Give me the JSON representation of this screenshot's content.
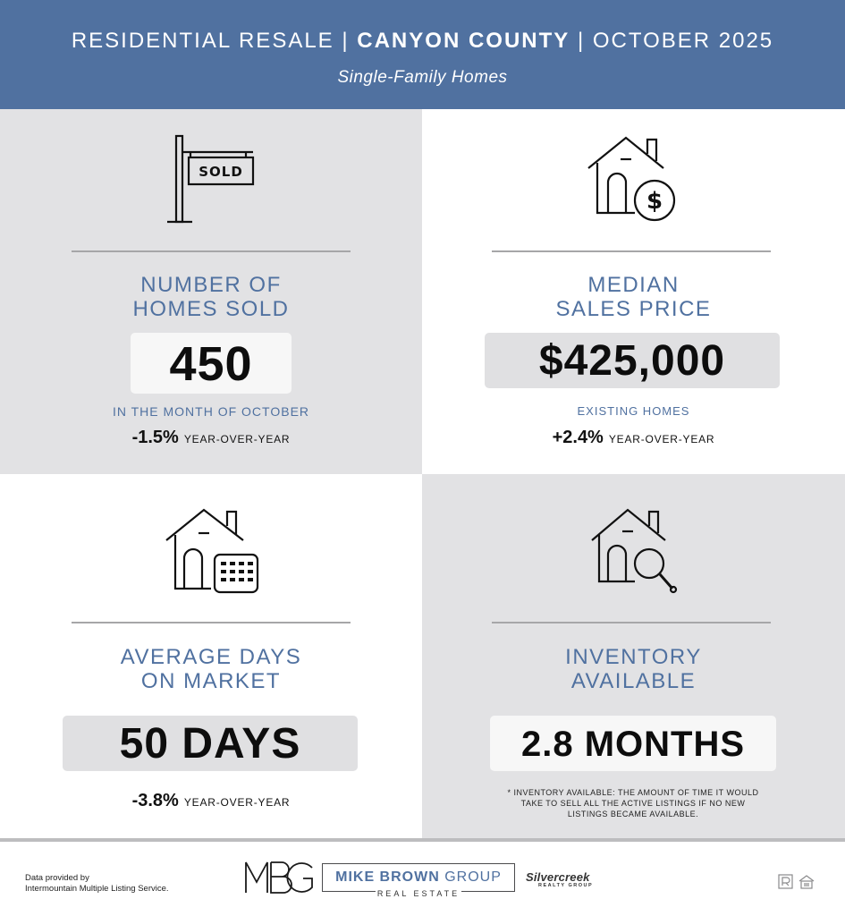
{
  "header": {
    "title_part1": "RESIDENTIAL RESALE | ",
    "title_bold": "CANYON COUNTY",
    "title_part2": " | OCTOBER 2025",
    "subtitle": "Single-Family Homes"
  },
  "homes_sold": {
    "icon": "sold-sign-icon",
    "label_line1": "NUMBER OF",
    "label_line2": "HOMES SOLD",
    "value": "450",
    "caption": "IN THE MONTH OF OCTOBER",
    "yoy_pct": "-1.5%",
    "yoy_text": "YEAR-OVER-YEAR"
  },
  "median_price": {
    "icon": "house-dollar-icon",
    "label_line1": "MEDIAN",
    "label_line2": "SALES PRICE",
    "value": "$425,000",
    "caption": "EXISTING HOMES",
    "yoy_pct": "+2.4%",
    "yoy_text": "YEAR-OVER-YEAR"
  },
  "days_on_market": {
    "icon": "house-calendar-icon",
    "label_line1": "AVERAGE DAYS",
    "label_line2": "ON MARKET",
    "value": "50 DAYS",
    "yoy_pct": "-3.8%",
    "yoy_text": "YEAR-OVER-YEAR"
  },
  "inventory": {
    "icon": "house-search-icon",
    "label_line1": "INVENTORY",
    "label_line2": "AVAILABLE",
    "value": "2.8 MONTHS",
    "note_line1": "* INVENTORY AVAILABLE: THE AMOUNT OF TIME IT WOULD",
    "note_line2": "TAKE TO SELL ALL THE ACTIVE LISTINGS IF NO NEW",
    "note_line3": "LISTINGS BECAME AVAILABLE."
  },
  "footer": {
    "provided_line1": "Data provided by",
    "provided_line2": "Intermountain Multiple Listing Service.",
    "mbg_name_bold": "MIKE BROWN",
    "mbg_name_rest": " GROUP",
    "mbg_sub": "REAL ESTATE",
    "silvercreek_name": "Silvercreek",
    "silvercreek_sub": "REALTY GROUP"
  },
  "colors": {
    "brand_blue": "#5071a0",
    "panel_gray": "#e2e2e4"
  }
}
